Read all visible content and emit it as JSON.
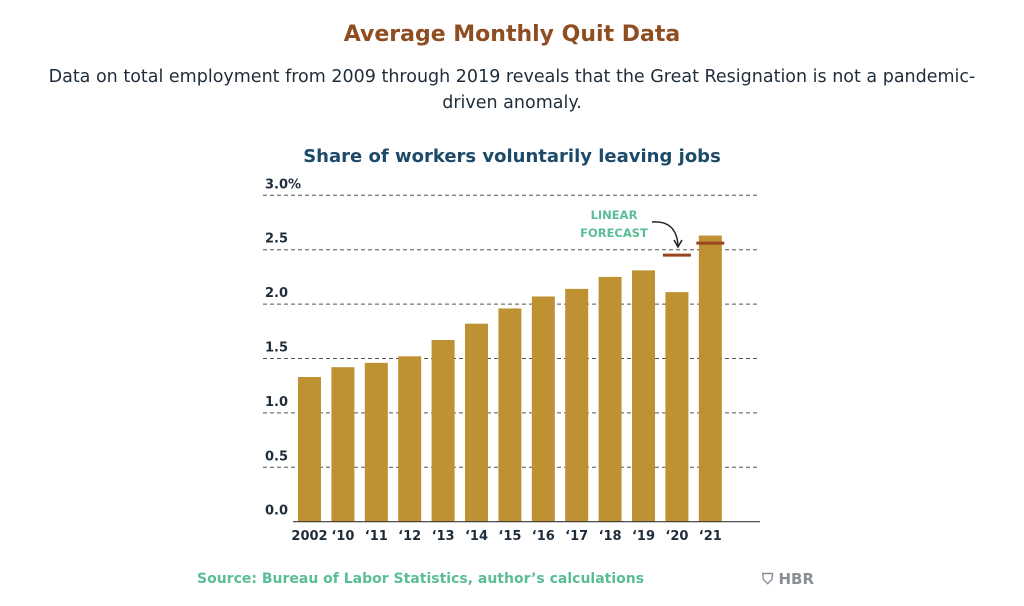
{
  "header": {
    "title": "Average Monthly Quit Data",
    "subtitle": "Data on total employment from 2009 through 2019 reveals that the Great Resignation is not a pandemic-driven anomaly."
  },
  "chart_data": {
    "type": "bar",
    "title": "Share of workers voluntarily leaving jobs",
    "xlabel": "",
    "ylabel": "",
    "categories": [
      "2002",
      "‘10",
      "‘11",
      "‘12",
      "‘13",
      "‘14",
      "‘15",
      "‘16",
      "‘17",
      "‘18",
      "‘19",
      "‘20",
      "‘21"
    ],
    "values": [
      1.33,
      1.42,
      1.46,
      1.52,
      1.67,
      1.82,
      1.96,
      2.07,
      2.14,
      2.25,
      2.31,
      2.11,
      2.63
    ],
    "ylim": [
      0,
      3.0
    ],
    "yticks": [
      "0.0",
      "0.5",
      "1.0",
      "1.5",
      "2.0",
      "2.5",
      "3.0%"
    ],
    "grid": true,
    "linear_forecast": {
      "label_lines": [
        "LINEAR",
        "FORECAST"
      ],
      "points": [
        {
          "category": "‘20",
          "value": 2.45
        },
        {
          "category": "‘21",
          "value": 2.56
        }
      ]
    },
    "colors": {
      "bar": "#be9132",
      "forecast": "#98461f",
      "annotation": "#5bbd96",
      "grid": "#555555"
    }
  },
  "footer": {
    "source": "Source: Bureau of Labor Statistics, author’s calculations",
    "logo": "HBR"
  }
}
